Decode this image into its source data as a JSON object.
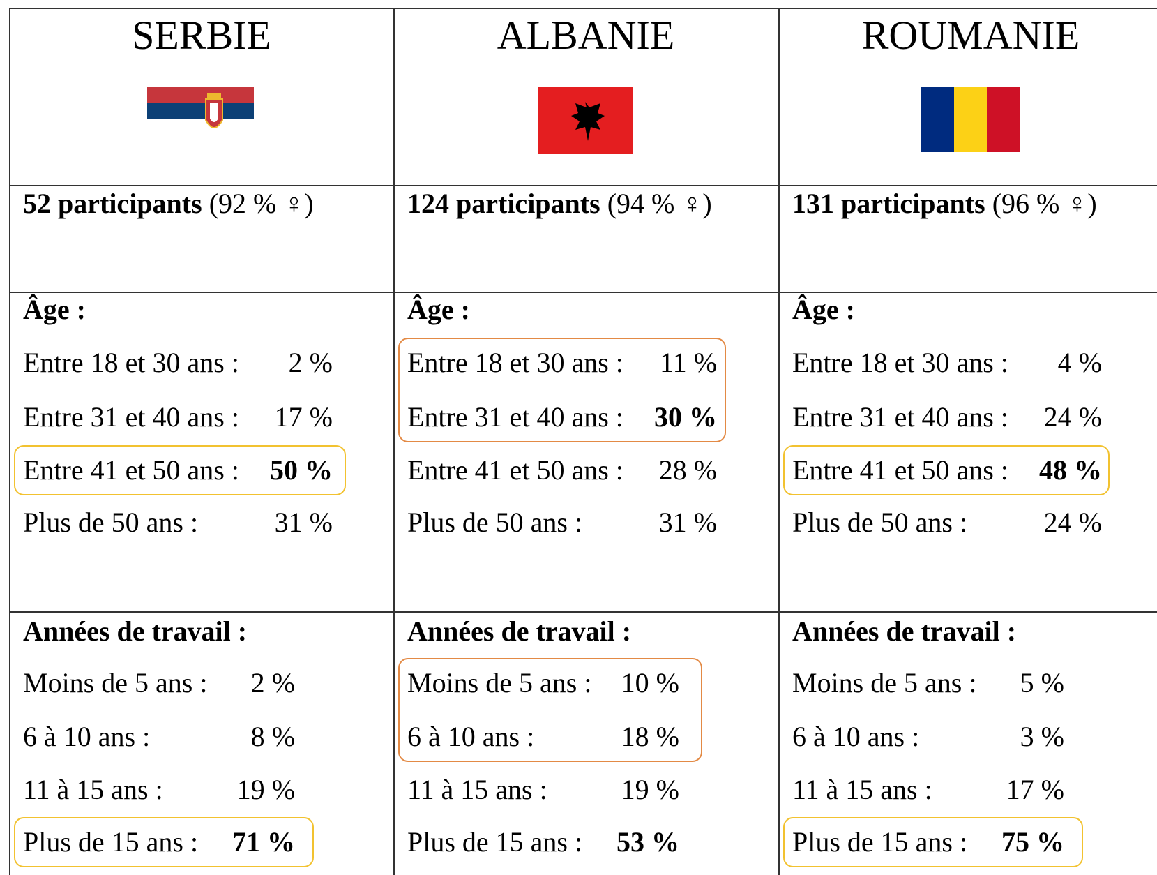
{
  "columns": [
    {
      "country": "SERBIE",
      "participants": "52 participants",
      "participants_detail": "(92 % ♀)",
      "age": {
        "heading": "Âge :",
        "rows": [
          {
            "label": "Entre 18 et 30 ans :",
            "value": "2 %"
          },
          {
            "label": "Entre 31 et 40 ans :",
            "value": "17 %"
          },
          {
            "label": "Entre 41 et 50 ans :",
            "value": "50 %",
            "bold": true
          },
          {
            "label": "Plus de 50 ans :",
            "value": "31 %"
          }
        ]
      },
      "years": {
        "heading": "Années de travail :",
        "rows": [
          {
            "label": "Moins de 5 ans :",
            "value": "2 %"
          },
          {
            "label": "6 à 10 ans :",
            "value": "8 %"
          },
          {
            "label": "11 à 15 ans :",
            "value": "19 %"
          },
          {
            "label": "Plus de 15 ans :",
            "value": "71 %",
            "bold": true
          }
        ]
      }
    },
    {
      "country": "ALBANIE",
      "participants": "124 participants",
      "participants_detail": "(94 % ♀)",
      "age": {
        "heading": "Âge :",
        "rows": [
          {
            "label": "Entre 18 et 30 ans :",
            "value": "11 %"
          },
          {
            "label": "Entre 31 et 40 ans :",
            "value": "30 %",
            "bold": true
          },
          {
            "label": "Entre 41 et 50 ans :",
            "value": "28 %"
          },
          {
            "label": "Plus de 50 ans :",
            "value": "31 %"
          }
        ]
      },
      "years": {
        "heading": "Années de travail :",
        "rows": [
          {
            "label": "Moins de 5 ans :",
            "value": "10 %"
          },
          {
            "label": "6 à 10 ans :",
            "value": "18 %"
          },
          {
            "label": "11 à 15 ans :",
            "value": "19 %"
          },
          {
            "label": "Plus de 15 ans :",
            "value": "53 %",
            "bold": true
          }
        ]
      }
    },
    {
      "country": "ROUMANIE",
      "participants": "131 participants",
      "participants_detail": "(96 % ♀)",
      "age": {
        "heading": "Âge :",
        "rows": [
          {
            "label": "Entre 18 et 30 ans :",
            "value": "4 %"
          },
          {
            "label": "Entre 31 et 40 ans :",
            "value": "24 %"
          },
          {
            "label": "Entre 41 et 50 ans :",
            "value": "48 %",
            "bold": true
          },
          {
            "label": "Plus de 50 ans :",
            "value": "24 %"
          }
        ]
      },
      "years": {
        "heading": "Années de travail :",
        "rows": [
          {
            "label": "Moins de 5 ans :",
            "value": "5 %"
          },
          {
            "label": "6 à 10 ans :",
            "value": "3 %"
          },
          {
            "label": "11 à 15 ans :",
            "value": "17 %"
          },
          {
            "label": "Plus de 15 ans :",
            "value": "75 %",
            "bold": true
          }
        ]
      }
    }
  ]
}
